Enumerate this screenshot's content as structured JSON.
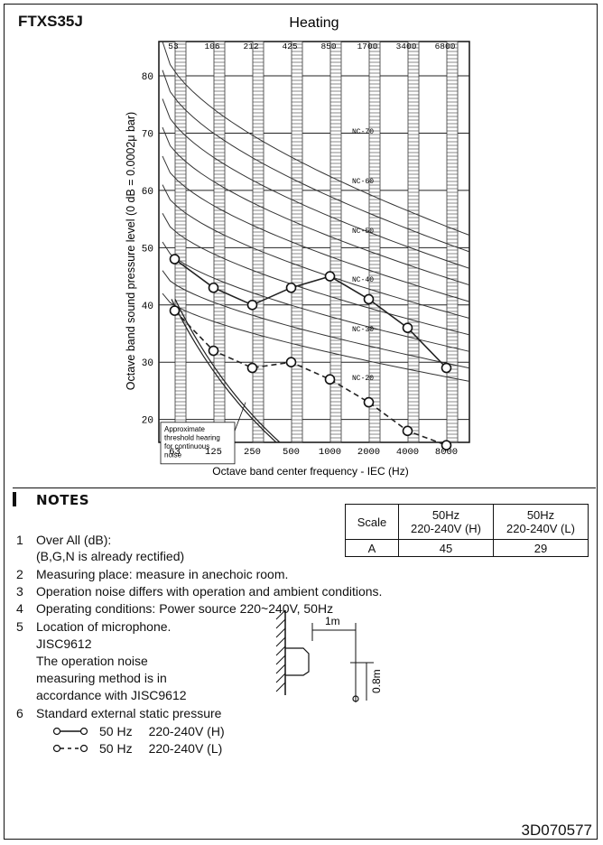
{
  "model": "FTXS35J",
  "chart_data": {
    "type": "line",
    "title": "Heating",
    "xlabel": "Octave band center frequency - IEC (Hz)",
    "ylabel": "Octave band sound pressure level (0 dB = 0.0002μ bar)",
    "top_ticks": [
      "53",
      "106",
      "212",
      "425",
      "850",
      "1700",
      "3400",
      "6800"
    ],
    "categories": [
      "63",
      "125",
      "250",
      "500",
      "1000",
      "2000",
      "4000",
      "8000"
    ],
    "ylim": [
      16,
      86
    ],
    "yticks": [
      20,
      30,
      40,
      50,
      60,
      70,
      80
    ],
    "series": [
      {
        "name": "220-240V (H)",
        "style": "solid",
        "values": [
          48,
          43,
          40,
          43,
          45,
          41,
          36,
          29
        ]
      },
      {
        "name": "220-240V (L)",
        "style": "dashed",
        "values": [
          39,
          32,
          29,
          30,
          27,
          23,
          18,
          15.5
        ]
      }
    ],
    "nc_labels": [
      "NC-70",
      "NC-60",
      "NC-50",
      "NC-40",
      "NC-30",
      "NC-20"
    ],
    "threshold_note": [
      "Approximate",
      "threshold hearing",
      "for continuous",
      "noise"
    ]
  },
  "notes": {
    "title": "NOTES",
    "items": [
      {
        "num": "1",
        "lines": [
          "Over All (dB):",
          "(B,G,N is already rectified)"
        ]
      },
      {
        "num": "2",
        "lines": [
          "Measuring place: measure in anechoic room."
        ]
      },
      {
        "num": "3",
        "lines": [
          "Operation noise differs with operation and ambient conditions."
        ]
      },
      {
        "num": "4",
        "lines": [
          "Operating conditions: Power source 220~240V, 50Hz"
        ]
      },
      {
        "num": "5",
        "lines": [
          "Location of microphone.",
          "JISC9612",
          "The operation noise",
          "measuring method is in",
          "accordance with JISC9612"
        ]
      },
      {
        "num": "6",
        "lines": [
          "Standard external static pressure"
        ]
      }
    ],
    "legend": [
      {
        "symbol": "solid",
        "freq": "50 Hz",
        "voltage": "220-240V (H)"
      },
      {
        "symbol": "dashed",
        "freq": "50 Hz",
        "voltage": "220-240V (L)"
      }
    ],
    "diagram": {
      "horizontal": "1m",
      "vertical": "0.8m"
    }
  },
  "scale_table": {
    "headers": [
      "Scale",
      "50Hz\n220-240V (H)",
      "50Hz\n220-240V (L)"
    ],
    "row": [
      "A",
      "45",
      "29"
    ]
  },
  "footer": "3D070577"
}
